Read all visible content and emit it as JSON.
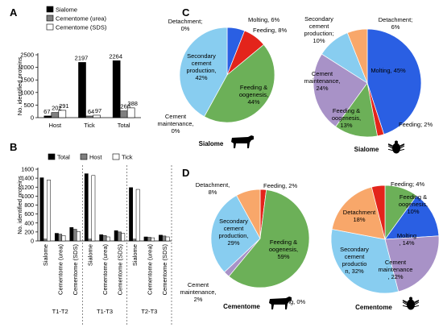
{
  "colors": {
    "black": "#000000",
    "gray": "#7f7f7f",
    "white": "#ffffff",
    "blue": "#2a5fe3",
    "red": "#e3241b",
    "green": "#6cb058",
    "lightblue": "#88cdf0",
    "purple": "#a892c7",
    "orange": "#f8a76a"
  },
  "chart_data": [
    {
      "panel": "A",
      "type": "bar",
      "categories": [
        "Host",
        "Tick",
        "Total"
      ],
      "series": [
        {
          "name": "Sialome",
          "values": [
            67,
            2197,
            2264
          ]
        },
        {
          "name": "Cementome (urea)",
          "values": [
            202,
            64,
            266
          ]
        },
        {
          "name": "Cementome (SDS)",
          "values": [
            291,
            97,
            388
          ]
        }
      ],
      "ylabel": "No. identified proteins",
      "ylim": [
        0,
        2500
      ],
      "yticks": [
        0,
        500,
        1000,
        1500,
        2000,
        2500
      ],
      "legend": "top-right"
    },
    {
      "panel": "B",
      "type": "bar",
      "categories": [
        "Sialome",
        "Cementome (urea)",
        "Cementome (SDS)",
        "Sialome",
        "Cementome (urea)",
        "Cementome (SDS)",
        "Sialome",
        "Cementome (urea)",
        "Cementome (SDS)"
      ],
      "groups": [
        "T1-T2",
        "T1-T3",
        "T2-T3"
      ],
      "series": [
        {
          "name": "Total",
          "values": [
            1410,
            170,
            300,
            1500,
            140,
            230,
            1190,
            90,
            130
          ]
        },
        {
          "name": "Host",
          "values": [
            40,
            150,
            260,
            40,
            120,
            200,
            40,
            80,
            110
          ]
        },
        {
          "name": "Tick",
          "values": [
            1360,
            120,
            210,
            1460,
            90,
            170,
            1150,
            70,
            90
          ]
        }
      ],
      "ylabel": "No. identified proteins",
      "ylim": [
        0,
        1600
      ],
      "yticks": [
        0,
        200,
        400,
        600,
        800,
        1000,
        1200,
        1400,
        1600
      ],
      "legend": "top"
    },
    {
      "panel": "C",
      "type": "pie",
      "charts": [
        {
          "label": "Sialome",
          "host": "cow",
          "slices": [
            {
              "name": "Molting",
              "value": 6,
              "color": "blue",
              "text": "Molting, 6%"
            },
            {
              "name": "Feeding",
              "value": 8,
              "color": "red",
              "text": "Feeding, 8%"
            },
            {
              "name": "Feeding & oogenesis",
              "value": 44,
              "color": "green",
              "text": "Feeding & oogenesis, 44%"
            },
            {
              "name": "Cement maintenance",
              "value": 0,
              "color": "purple",
              "text": "Cement maintenance, 0%"
            },
            {
              "name": "Secondary cement production",
              "value": 42,
              "color": "lightblue",
              "text": "Secondary cement production, 42%"
            },
            {
              "name": "Detachment",
              "value": 0,
              "color": "orange",
              "text": "Detachment; 0%"
            }
          ]
        },
        {
          "label": "Sialome",
          "host": "tick",
          "slices": [
            {
              "name": "Molting",
              "value": 45,
              "color": "blue",
              "text": "Molting, 45%"
            },
            {
              "name": "Feeding",
              "value": 2,
              "color": "red",
              "text": "Feeding; 2%"
            },
            {
              "name": "Feeding & oogenesis",
              "value": 13,
              "color": "green",
              "text": "Feeding & oogenesis, 13%"
            },
            {
              "name": "Cement maintenance",
              "value": 24,
              "color": "purple",
              "text": "Cement maintenance, 24%"
            },
            {
              "name": "Secondary cement production",
              "value": 10,
              "color": "lightblue",
              "text": "Secondary cement production; 10%"
            },
            {
              "name": "Detachment",
              "value": 6,
              "color": "orange",
              "text": "Detachment; 6%"
            }
          ]
        }
      ]
    },
    {
      "panel": "D",
      "type": "pie",
      "charts": [
        {
          "label": "Cementome",
          "host": "cow",
          "slices": [
            {
              "name": "Feeding",
              "value": 2,
              "color": "red",
              "text": "Feeding, 2%"
            },
            {
              "name": "Feeding & oogenesis",
              "value": 59,
              "color": "green",
              "text": "Feeding & oogenesis, 59%"
            },
            {
              "name": "Molting",
              "value": 0,
              "color": "blue",
              "text": "Molting, 0%"
            },
            {
              "name": "Cement maintenance",
              "value": 2,
              "color": "purple",
              "text": "Cement maintenance, 2%"
            },
            {
              "name": "Secondary cement production",
              "value": 29,
              "color": "lightblue",
              "text": "Secondary cement production, 29%"
            },
            {
              "name": "Detachment",
              "value": 8,
              "color": "orange",
              "text": "Detachment, 8%"
            }
          ]
        },
        {
          "label": "Cementome",
          "host": "tick",
          "slices": [
            {
              "name": "Feeding & oogenesis",
              "value": 10,
              "color": "green",
              "text": "Feeding & oogenesis, 10%"
            },
            {
              "name": "Molting",
              "value": 14,
              "color": "blue",
              "text": "Molting, 14%"
            },
            {
              "name": "Cement maintenance",
              "value": 22,
              "color": "purple",
              "text": "Cement maintenance, 22%"
            },
            {
              "name": "Secondary cement production",
              "value": 32,
              "color": "lightblue",
              "text": "Secondary cement production, 32%"
            },
            {
              "name": "Detachment",
              "value": 18,
              "color": "orange",
              "text": "Detachment 18%"
            },
            {
              "name": "Feeding",
              "value": 4,
              "color": "red",
              "text": "Feeding; 4%"
            }
          ]
        }
      ]
    }
  ]
}
